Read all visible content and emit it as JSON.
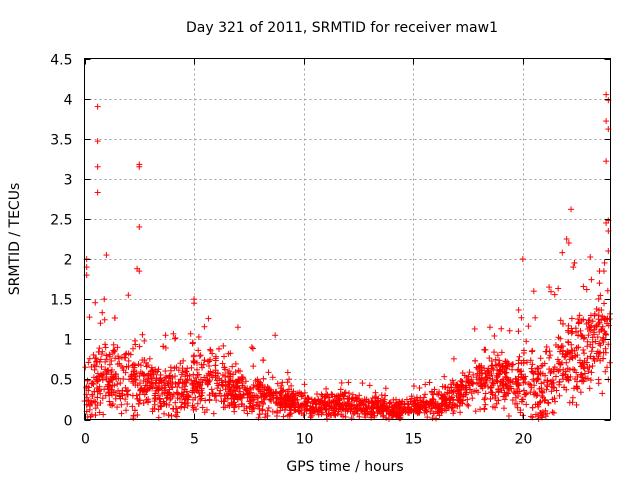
{
  "chart_data": {
    "type": "scatter",
    "title": "Day 321 of 2011, SRMTID for receiver maw1",
    "xlabel": "GPS time / hours",
    "ylabel": "SRMTID / TECUs",
    "xlim": [
      0,
      24
    ],
    "ylim": [
      0,
      4.5
    ],
    "grid": true,
    "marker": "+",
    "color": "#ff0000",
    "xticks": [
      "0",
      "5",
      "10",
      "15",
      "20"
    ],
    "yticks": [
      "0",
      "0.5",
      "1",
      "1.5",
      "2",
      "2.5",
      "3",
      "3.5",
      "4",
      "4.5"
    ],
    "trend": {
      "description": "approximate central level of SRMTID vs hour",
      "x": [
        0,
        0.5,
        1,
        2,
        3,
        4,
        5,
        6,
        7,
        8,
        9,
        10,
        11,
        12,
        13,
        14,
        15,
        16,
        17,
        18,
        19,
        20,
        21,
        22,
        23,
        24
      ],
      "y": [
        0.35,
        0.45,
        0.5,
        0.45,
        0.4,
        0.35,
        0.5,
        0.45,
        0.35,
        0.3,
        0.25,
        0.2,
        0.18,
        0.18,
        0.15,
        0.12,
        0.15,
        0.2,
        0.3,
        0.45,
        0.5,
        0.45,
        0.4,
        0.7,
        0.9,
        1.0
      ],
      "spread": [
        0.4,
        0.5,
        0.45,
        0.5,
        0.4,
        0.4,
        0.45,
        0.35,
        0.3,
        0.25,
        0.2,
        0.15,
        0.15,
        0.15,
        0.15,
        0.12,
        0.12,
        0.15,
        0.25,
        0.35,
        0.4,
        0.45,
        0.55,
        0.6,
        0.6,
        0.6
      ]
    },
    "outliers": [
      {
        "x": 0.1,
        "y": 2.0
      },
      {
        "x": 0.1,
        "y": 1.9
      },
      {
        "x": 0.1,
        "y": 1.8
      },
      {
        "x": 0.6,
        "y": 3.9
      },
      {
        "x": 0.6,
        "y": 3.47
      },
      {
        "x": 0.6,
        "y": 3.15
      },
      {
        "x": 0.6,
        "y": 2.83
      },
      {
        "x": 1.0,
        "y": 2.05
      },
      {
        "x": 0.9,
        "y": 1.5
      },
      {
        "x": 2.5,
        "y": 3.18
      },
      {
        "x": 2.5,
        "y": 3.15
      },
      {
        "x": 2.5,
        "y": 2.4
      },
      {
        "x": 2.4,
        "y": 1.88
      },
      {
        "x": 2.5,
        "y": 1.85
      },
      {
        "x": 2.0,
        "y": 1.55
      },
      {
        "x": 5.0,
        "y": 1.5
      },
      {
        "x": 5.0,
        "y": 1.45
      },
      {
        "x": 7.0,
        "y": 1.15
      },
      {
        "x": 8.7,
        "y": 1.05
      },
      {
        "x": 18.5,
        "y": 1.15
      },
      {
        "x": 19.8,
        "y": 1.1
      },
      {
        "x": 20.0,
        "y": 2.0
      },
      {
        "x": 20.5,
        "y": 1.6
      },
      {
        "x": 21.2,
        "y": 1.65
      },
      {
        "x": 22.0,
        "y": 2.25
      },
      {
        "x": 22.2,
        "y": 2.62
      },
      {
        "x": 22.1,
        "y": 2.2
      },
      {
        "x": 21.8,
        "y": 2.08
      },
      {
        "x": 22.3,
        "y": 1.9
      },
      {
        "x": 23.5,
        "y": 1.85
      },
      {
        "x": 23.8,
        "y": 4.05
      },
      {
        "x": 23.9,
        "y": 3.98
      },
      {
        "x": 23.8,
        "y": 3.72
      },
      {
        "x": 23.9,
        "y": 3.62
      },
      {
        "x": 23.8,
        "y": 3.22
      },
      {
        "x": 23.9,
        "y": 2.48
      },
      {
        "x": 23.8,
        "y": 2.45
      },
      {
        "x": 23.9,
        "y": 2.35
      },
      {
        "x": 23.9,
        "y": 2.1
      },
      {
        "x": 23.7,
        "y": 1.85
      },
      {
        "x": 23.5,
        "y": 1.7
      }
    ]
  }
}
